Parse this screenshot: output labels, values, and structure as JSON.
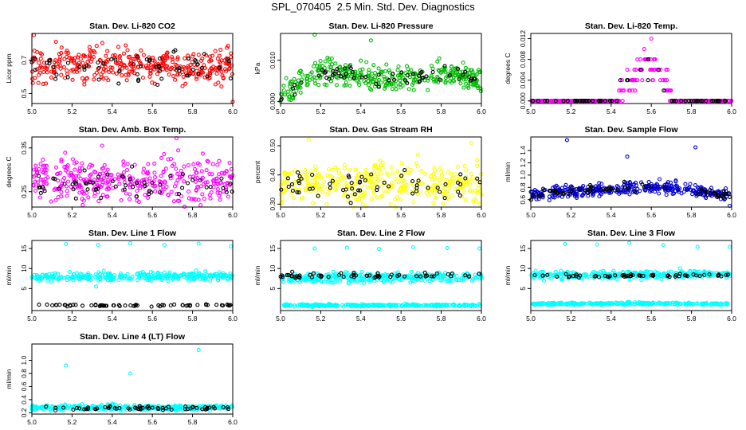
{
  "page_title": "SPL_070405  2.5 Min. Std. Dev. Diagnostics",
  "chart_data": [
    {
      "type": "scatter",
      "title": "Stan. Dev. Li-820 CO2",
      "ylabel": "Licor ppm",
      "xlim": [
        5.0,
        6.0
      ],
      "ylim": [
        0.44,
        0.86
      ],
      "xticks": [
        "5.0",
        "5.2",
        "5.4",
        "5.6",
        "5.8",
        "6.0"
      ],
      "yticks": [
        "0.5",
        "0.7"
      ],
      "series": [
        {
          "color": "#ff0000",
          "profile": [
            0.67,
            0.67
          ],
          "spread": 0.05,
          "count": 360
        },
        {
          "color": "#000000",
          "profile": [
            0.66,
            0.66
          ],
          "spread": 0.05,
          "count": 60
        }
      ],
      "outliers": [
        {
          "x": 5.01,
          "y": 0.85
        },
        {
          "x": 5.12,
          "y": 0.81
        },
        {
          "x": 5.07,
          "y": 0.56
        },
        {
          "x": 6.0,
          "y": 0.45
        },
        {
          "x": 5.38,
          "y": 0.58
        }
      ]
    },
    {
      "type": "scatter",
      "title": "Stan. Dev. Li-820 Pressure",
      "ylabel": "kPa",
      "xlim": [
        5.0,
        6.0
      ],
      "ylim": [
        -0.0005,
        0.0165
      ],
      "xticks": [
        "5.0",
        "5.2",
        "5.4",
        "5.6",
        "5.8",
        "6.0"
      ],
      "yticks": [
        "0.000",
        "0.010"
      ],
      "series": [
        {
          "color": "#00bb00",
          "profile": [
            0.001,
            0.004,
            0.0065,
            0.0072,
            0.0065,
            0.0055,
            0.0052,
            0.0055,
            0.0062,
            0.0072,
            0.0065,
            0.0045
          ],
          "spread": 0.0015,
          "count": 360
        },
        {
          "color": "#000000",
          "profile": [
            0.001,
            0.004,
            0.0065,
            0.0072,
            0.0065,
            0.0055,
            0.0052,
            0.0055,
            0.0062,
            0.0072,
            0.0065,
            0.0045
          ],
          "spread": 0.0008,
          "count": 60
        }
      ],
      "outliers": [
        {
          "x": 5.17,
          "y": 0.0162
        },
        {
          "x": 5.45,
          "y": 0.0148
        },
        {
          "x": 5.0,
          "y": 0.0
        }
      ]
    },
    {
      "type": "scatter",
      "title": "Stan. Dev. Li-820 Temp.",
      "ylabel": "degrees C",
      "xlim": [
        5.0,
        6.0
      ],
      "ylim": [
        -0.0005,
        0.013
      ],
      "xticks": [
        "5.0",
        "5.2",
        "5.4",
        "5.6",
        "5.8",
        "6.0"
      ],
      "yticks": [
        "0.000",
        "0.004",
        "0.008",
        "0.012"
      ],
      "series": [
        {
          "color": "#ff00ff",
          "profile": [
            0,
            0,
            0,
            0,
            0,
            0,
            0,
            0.004,
            0.007,
            0.006,
            0,
            0,
            0,
            0,
            0
          ],
          "spread": 0.0015,
          "count": 300,
          "quantum": 0.002
        },
        {
          "color": "#000000",
          "profile": [
            0,
            0,
            0,
            0,
            0,
            0,
            0,
            0.004,
            0.007,
            0.006,
            0,
            0,
            0,
            0,
            0
          ],
          "spread": 0.0015,
          "count": 60,
          "quantum": 0.002
        }
      ],
      "outliers": [
        {
          "x": 5.6,
          "y": 0.012
        }
      ]
    },
    {
      "type": "scatter",
      "title": "Stan. Dev. Amb. Box Temp.",
      "ylabel": "degrees C",
      "xlim": [
        5.0,
        6.0
      ],
      "ylim": [
        0.215,
        0.375
      ],
      "xticks": [
        "5.0",
        "5.2",
        "5.4",
        "5.6",
        "5.8",
        "6.0"
      ],
      "yticks": [
        "0.25",
        "0.35"
      ],
      "series": [
        {
          "color": "#ff00ff",
          "profile": [
            0.275,
            0.275
          ],
          "spread": 0.025,
          "count": 360
        },
        {
          "color": "#000000",
          "profile": [
            0.265,
            0.265
          ],
          "spread": 0.015,
          "count": 60
        }
      ],
      "outliers": [
        {
          "x": 5.72,
          "y": 0.372
        },
        {
          "x": 5.35,
          "y": 0.355
        }
      ]
    },
    {
      "type": "scatter",
      "title": "Stan. Dev. Gas Stream RH",
      "ylabel": "percent",
      "xlim": [
        5.0,
        6.0
      ],
      "ylim": [
        0.29,
        0.53
      ],
      "xticks": [
        "5.0",
        "5.2",
        "5.4",
        "5.6",
        "5.8",
        "6.0"
      ],
      "yticks": [
        "0.30",
        "0.40",
        "0.50"
      ],
      "series": [
        {
          "color": "#ffff00",
          "profile": [
            0.37,
            0.37
          ],
          "spread": 0.035,
          "count": 360
        },
        {
          "color": "#000000",
          "profile": [
            0.37,
            0.37
          ],
          "spread": 0.025,
          "count": 60
        }
      ],
      "outliers": [
        {
          "x": 5.14,
          "y": 0.52
        },
        {
          "x": 5.95,
          "y": 0.51
        },
        {
          "x": 5.99,
          "y": 0.3
        }
      ]
    },
    {
      "type": "scatter",
      "title": "Stan. Dev. Sample Flow",
      "ylabel": "ml/min",
      "xlim": [
        5.0,
        6.0
      ],
      "ylim": [
        0.48,
        1.62
      ],
      "xticks": [
        "5.0",
        "5.2",
        "5.4",
        "5.6",
        "5.8",
        "6.0"
      ],
      "yticks": [
        "0.6",
        "0.8",
        "1.0",
        "1.2",
        "1.4"
      ],
      "series": [
        {
          "color": "#0000cc",
          "profile": [
            0.68,
            0.72,
            0.75,
            0.78,
            0.82,
            0.77,
            0.72,
            0.68
          ],
          "spread": 0.05,
          "count": 360
        },
        {
          "color": "#000000",
          "profile": [
            0.68,
            0.72,
            0.75,
            0.78,
            0.82,
            0.77,
            0.72,
            0.68
          ],
          "spread": 0.04,
          "count": 60
        }
      ],
      "outliers": [
        {
          "x": 5.18,
          "y": 1.57
        },
        {
          "x": 5.82,
          "y": 1.45
        },
        {
          "x": 5.48,
          "y": 1.3
        },
        {
          "x": 5.99,
          "y": 0.5
        }
      ]
    },
    {
      "type": "scatter",
      "title": "Stan. Dev. Line 1 Flow",
      "ylabel": "ml/min",
      "xlim": [
        5.0,
        6.0
      ],
      "ylim": [
        -0.5,
        17
      ],
      "xticks": [
        "5.0",
        "5.2",
        "5.4",
        "5.6",
        "5.8",
        "6.0"
      ],
      "yticks": [
        "5",
        "10",
        "15"
      ],
      "series": [
        {
          "color": "#00ffff",
          "profile": [
            7.8,
            8.2
          ],
          "spread": 0.5,
          "count": 320
        },
        {
          "color": "#000000",
          "profile": [
            0.8,
            0.8
          ],
          "spread": 0.12,
          "count": 60
        }
      ],
      "outliers": [
        {
          "x": 5.17,
          "y": 16.1
        },
        {
          "x": 5.33,
          "y": 15.9
        },
        {
          "x": 5.49,
          "y": 16.3
        },
        {
          "x": 5.66,
          "y": 15.9
        },
        {
          "x": 5.83,
          "y": 16.2
        },
        {
          "x": 5.99,
          "y": 15.5
        },
        {
          "x": 5.32,
          "y": 5.5
        }
      ]
    },
    {
      "type": "scatter",
      "title": "Stan. Dev. Line 2 Flow",
      "ylabel": "ml/min",
      "xlim": [
        5.0,
        6.0
      ],
      "ylim": [
        -0.5,
        17
      ],
      "xticks": [
        "5.0",
        "5.2",
        "5.4",
        "5.6",
        "5.8",
        "6.0"
      ],
      "yticks": [
        "5",
        "10",
        "15"
      ],
      "series": [
        {
          "color": "#00ffff",
          "profile": [
            7.6,
            7.9
          ],
          "spread": 0.6,
          "count": 300
        },
        {
          "color": "#00ffff",
          "profile": [
            0.8,
            0.8
          ],
          "spread": 0.15,
          "count": 260
        },
        {
          "color": "#000000",
          "profile": [
            8.3,
            8.3
          ],
          "spread": 0.3,
          "count": 60
        }
      ],
      "outliers": [
        {
          "x": 5.17,
          "y": 15.0
        },
        {
          "x": 5.33,
          "y": 15.2
        },
        {
          "x": 5.49,
          "y": 14.9
        },
        {
          "x": 5.66,
          "y": 15.3
        },
        {
          "x": 5.83,
          "y": 15.1
        },
        {
          "x": 5.99,
          "y": 15.0
        }
      ]
    },
    {
      "type": "scatter",
      "title": "Stan. Dev. Line 3 Flow",
      "ylabel": "ml/min",
      "xlim": [
        5.0,
        6.0
      ],
      "ylim": [
        -0.5,
        17
      ],
      "xticks": [
        "5.0",
        "5.2",
        "5.4",
        "5.6",
        "5.8",
        "6.0"
      ],
      "yticks": [
        "5",
        "10",
        "15"
      ],
      "series": [
        {
          "color": "#00ffff",
          "profile": [
            8.2,
            8.6
          ],
          "spread": 0.5,
          "count": 300
        },
        {
          "color": "#00ffff",
          "profile": [
            1.1,
            1.3,
            1.1
          ],
          "spread": 0.15,
          "count": 260
        },
        {
          "color": "#000000",
          "profile": [
            8.2,
            8.2
          ],
          "spread": 0.25,
          "count": 60
        }
      ],
      "outliers": [
        {
          "x": 5.17,
          "y": 16.1
        },
        {
          "x": 5.33,
          "y": 16.0
        },
        {
          "x": 5.49,
          "y": 16.4
        },
        {
          "x": 5.66,
          "y": 15.9
        },
        {
          "x": 5.83,
          "y": 15.4
        },
        {
          "x": 5.99,
          "y": 15.4
        }
      ]
    },
    {
      "type": "scatter",
      "title": "Stan. Dev. Line 4 (LT) Flow",
      "ylabel": "ml/min",
      "xlim": [
        5.0,
        6.0
      ],
      "ylim": [
        0.18,
        1.25
      ],
      "xticks": [
        "5.0",
        "5.2",
        "5.4",
        "5.6",
        "5.8",
        "6.0"
      ],
      "yticks": [
        "0.2",
        "0.4",
        "0.6",
        "0.8",
        "1.0"
      ],
      "series": [
        {
          "color": "#00ffff",
          "profile": [
            0.28,
            0.28
          ],
          "spread": 0.02,
          "count": 360
        },
        {
          "color": "#000000",
          "profile": [
            0.27,
            0.27
          ],
          "spread": 0.015,
          "count": 60
        }
      ],
      "outliers": [
        {
          "x": 5.17,
          "y": 0.92
        },
        {
          "x": 5.49,
          "y": 0.8
        },
        {
          "x": 5.83,
          "y": 1.16
        }
      ]
    }
  ]
}
